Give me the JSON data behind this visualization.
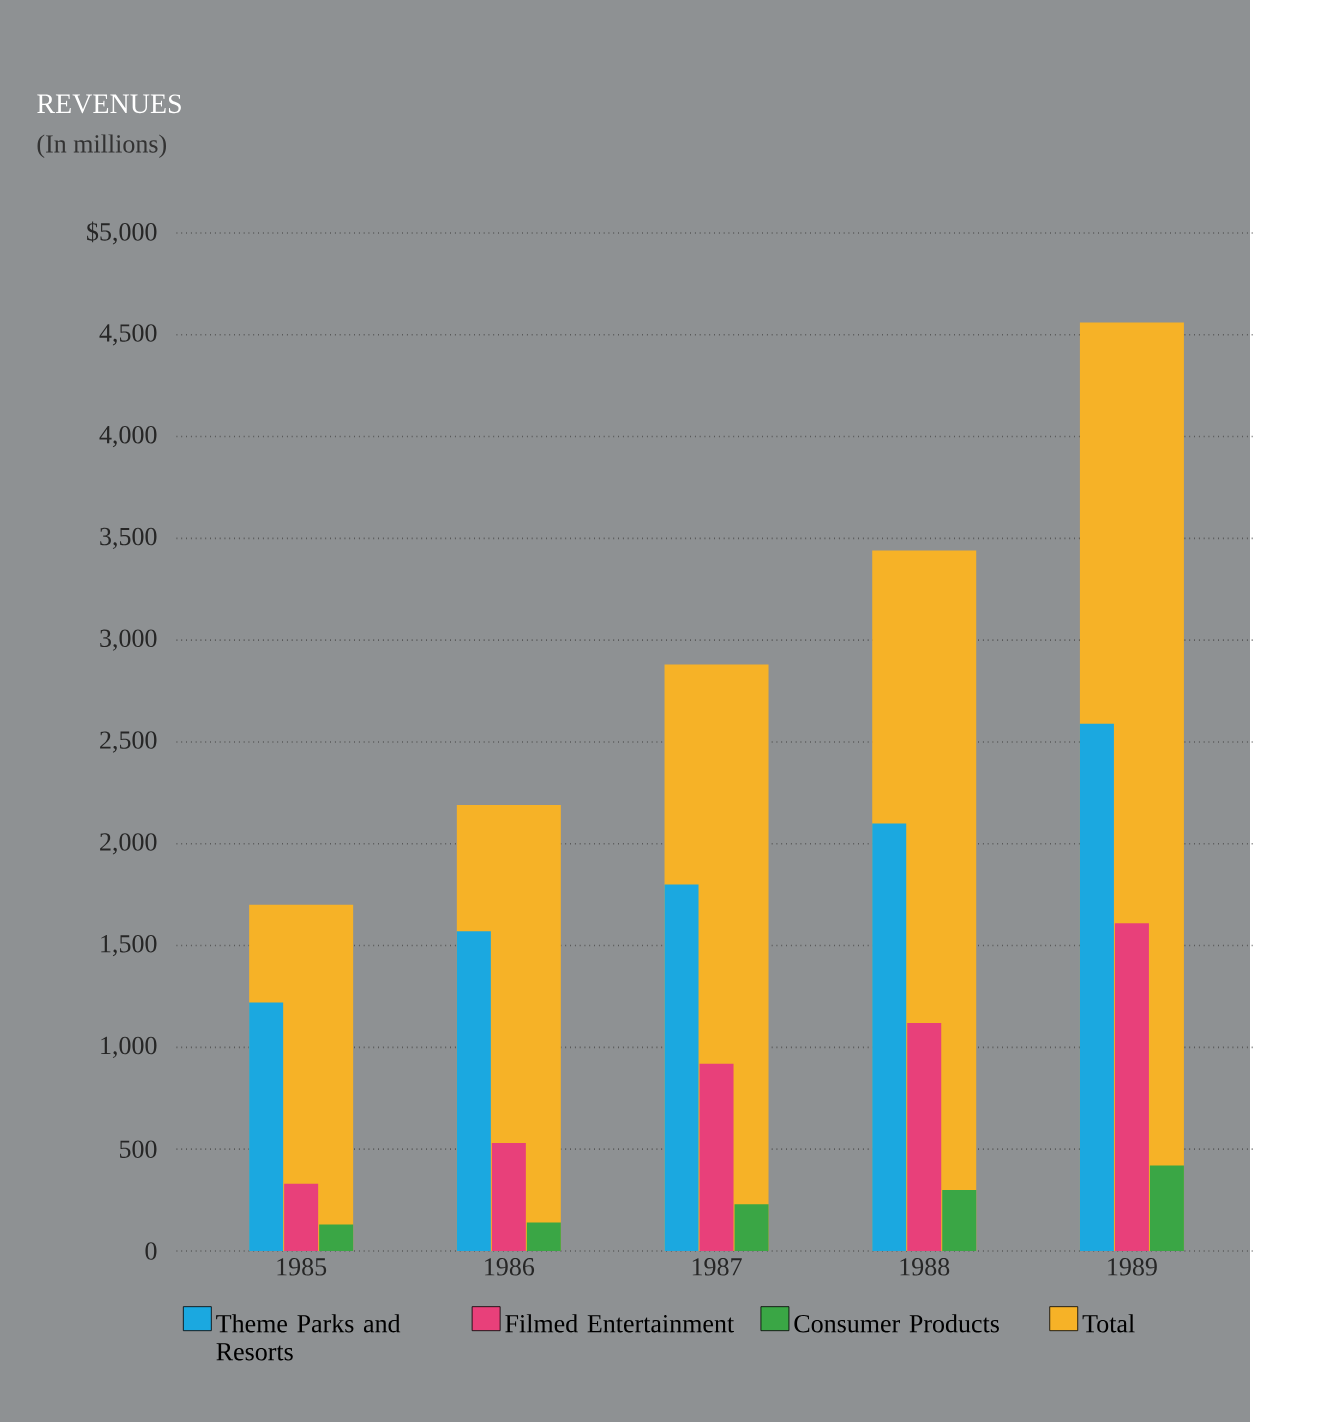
{
  "chart_data": {
    "type": "bar",
    "title": "REVENUES",
    "subtitle": "(In millions)",
    "categories": [
      "1985",
      "1986",
      "1987",
      "1988",
      "1989"
    ],
    "series": [
      {
        "name": "Theme Parks and Resorts",
        "color": "#1ba8e0",
        "values": [
          1220,
          1570,
          1800,
          2100,
          2590
        ]
      },
      {
        "name": "Filmed Entertainment",
        "color": "#e8407a",
        "values": [
          330,
          530,
          920,
          1120,
          1610
        ]
      },
      {
        "name": "Consumer Products",
        "color": "#3aa645",
        "values": [
          130,
          140,
          230,
          300,
          420
        ]
      },
      {
        "name": "Total",
        "color": "#f6b227",
        "values": [
          1700,
          2190,
          2880,
          3440,
          4560
        ]
      }
    ],
    "ylim": [
      0,
      5000
    ],
    "yticks": [
      {
        "value": 0,
        "label": "0"
      },
      {
        "value": 500,
        "label": "500"
      },
      {
        "value": 1000,
        "label": "1,000"
      },
      {
        "value": 1500,
        "label": "1,500"
      },
      {
        "value": 2000,
        "label": "2,000"
      },
      {
        "value": 2500,
        "label": "2,500"
      },
      {
        "value": 3000,
        "label": "3,000"
      },
      {
        "value": 3500,
        "label": "3,500"
      },
      {
        "value": 4000,
        "label": "4,000"
      },
      {
        "value": 4500,
        "label": "4,500"
      },
      {
        "value": 5000,
        "label": "$5,000"
      }
    ],
    "grid": "y",
    "legend": "bottom"
  }
}
